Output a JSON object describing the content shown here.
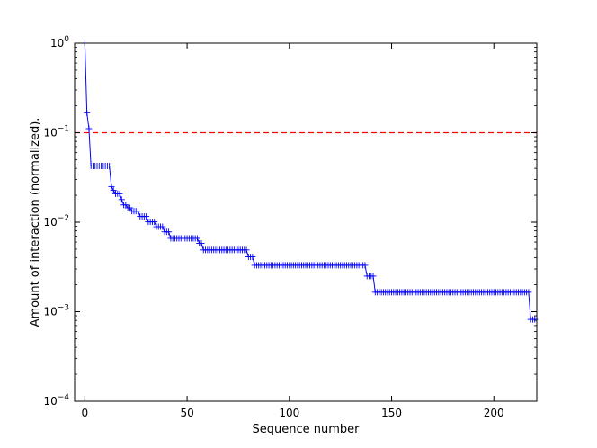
{
  "chart_data": {
    "type": "line",
    "title": "",
    "xlabel": "Sequence number",
    "ylabel": "Amount of interaction (normalized).",
    "xlim": [
      -5,
      221
    ],
    "ylim": [
      0.0001,
      1
    ],
    "yscale": "log",
    "grid": false,
    "x_ticks": [
      {
        "value": 0,
        "label": "0"
      },
      {
        "value": 50,
        "label": "50"
      },
      {
        "value": 100,
        "label": "100"
      },
      {
        "value": 150,
        "label": "150"
      },
      {
        "value": 200,
        "label": "200"
      }
    ],
    "y_ticks": [
      {
        "value": 1,
        "base": "10",
        "exp": "0"
      },
      {
        "value": 0.1,
        "base": "10",
        "exp": "−1"
      },
      {
        "value": 0.01,
        "base": "10",
        "exp": "−2"
      },
      {
        "value": 0.001,
        "base": "10",
        "exp": "−3"
      },
      {
        "value": 0.0001,
        "base": "10",
        "exp": "−4"
      }
    ],
    "series": [
      {
        "color": "#0000ff",
        "marker": "+",
        "segments": [
          {
            "x_start": 0,
            "x_end": 0,
            "y": 1.0
          },
          {
            "x_start": 1,
            "x_end": 1,
            "y": 0.167
          },
          {
            "x_start": 2,
            "x_end": 2,
            "y": 0.111
          },
          {
            "x_start": 3,
            "x_end": 12,
            "y": 0.0425
          },
          {
            "x_start": 13,
            "x_end": 13,
            "y": 0.025
          },
          {
            "x_start": 14,
            "x_end": 14,
            "y": 0.0227
          },
          {
            "x_start": 15,
            "x_end": 17,
            "y": 0.0208
          },
          {
            "x_start": 18,
            "x_end": 18,
            "y": 0.0179
          },
          {
            "x_start": 19,
            "x_end": 20,
            "y": 0.0156
          },
          {
            "x_start": 21,
            "x_end": 22,
            "y": 0.0145
          },
          {
            "x_start": 23,
            "x_end": 26,
            "y": 0.0133
          },
          {
            "x_start": 27,
            "x_end": 30,
            "y": 0.0116
          },
          {
            "x_start": 31,
            "x_end": 34,
            "y": 0.0101
          },
          {
            "x_start": 35,
            "x_end": 38,
            "y": 0.0089
          },
          {
            "x_start": 39,
            "x_end": 41,
            "y": 0.0078
          },
          {
            "x_start": 42,
            "x_end": 55,
            "y": 0.0066
          },
          {
            "x_start": 56,
            "x_end": 57,
            "y": 0.0058
          },
          {
            "x_start": 58,
            "x_end": 79,
            "y": 0.0049
          },
          {
            "x_start": 80,
            "x_end": 82,
            "y": 0.0041
          },
          {
            "x_start": 83,
            "x_end": 137,
            "y": 0.0033
          },
          {
            "x_start": 138,
            "x_end": 141,
            "y": 0.0025
          },
          {
            "x_start": 142,
            "x_end": 217,
            "y": 0.00165
          },
          {
            "x_start": 218,
            "x_end": 220,
            "y": 0.00082
          }
        ]
      }
    ],
    "reference_lines": [
      {
        "orientation": "horizontal",
        "y": 0.1,
        "color": "#ff0000",
        "style": "dashed"
      }
    ]
  }
}
